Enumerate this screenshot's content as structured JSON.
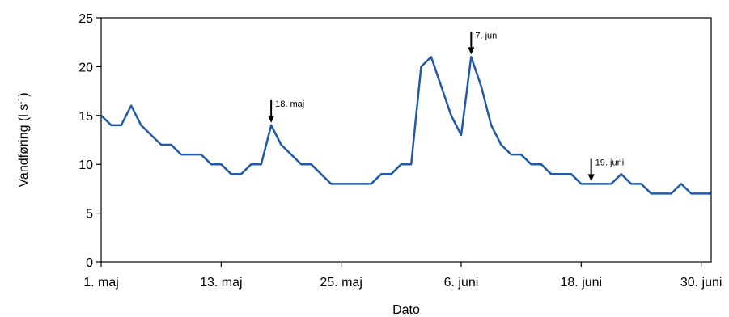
{
  "chart_data": {
    "type": "line",
    "xlabel": "Dato",
    "ylabel": "Vandføring (l s",
    "ylabel_sup": "-1",
    "ylabel_close": ")",
    "ylim": [
      0,
      25
    ],
    "yticks": [
      0,
      5,
      10,
      15,
      20,
      25
    ],
    "xlim": [
      0,
      61
    ],
    "xticks": [
      {
        "day": 0,
        "label": "1. maj"
      },
      {
        "day": 12,
        "label": "13. maj"
      },
      {
        "day": 24,
        "label": "25. maj"
      },
      {
        "day": 36,
        "label": "6. juni"
      },
      {
        "day": 48,
        "label": "18. juni"
      },
      {
        "day": 60,
        "label": "30. juni"
      }
    ],
    "grid": false,
    "line_color": "#1f5aa6",
    "series": [
      {
        "x": [
          0,
          1,
          2,
          3,
          4,
          5,
          6,
          7,
          8,
          9,
          10,
          11,
          12,
          13,
          14,
          15,
          16,
          17,
          18,
          19,
          20,
          21,
          22,
          23,
          24,
          25,
          26,
          27,
          28,
          29,
          30,
          31,
          32,
          33,
          34,
          35,
          36,
          37,
          38,
          39,
          40,
          41,
          42,
          43,
          44,
          45,
          46,
          47,
          48,
          49,
          50,
          51,
          52,
          53,
          54,
          55,
          56,
          57,
          58,
          59,
          60,
          61
        ],
        "values": [
          15,
          14,
          14,
          16,
          14,
          13,
          12,
          12,
          11,
          11,
          11,
          10,
          10,
          9,
          9,
          10,
          10,
          14,
          12,
          11,
          10,
          10,
          9,
          8,
          8,
          8,
          8,
          8,
          9,
          9,
          10,
          10,
          20,
          21,
          18,
          15,
          13,
          21,
          18,
          14,
          12,
          11,
          11,
          10,
          10,
          9,
          9,
          9,
          8,
          8,
          8,
          8,
          9,
          8,
          8,
          7,
          7,
          7,
          8,
          7,
          7,
          7
        ]
      }
    ],
    "annotations": [
      {
        "day": 17,
        "value": 14,
        "label": "18. maj"
      },
      {
        "day": 37,
        "value": 21,
        "label": "7. juni"
      },
      {
        "day": 49,
        "value": 8,
        "label": "19. juni"
      }
    ]
  }
}
